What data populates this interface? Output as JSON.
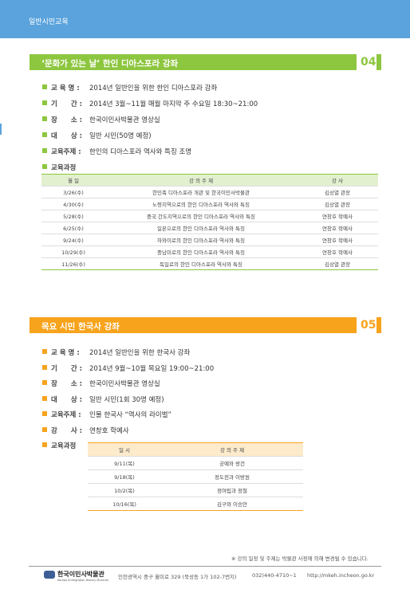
{
  "header": {
    "title": "일반시민교육"
  },
  "sections": [
    {
      "number": "04",
      "title": "‘문화가 있는 날’ 한인 디아스포라 강좌",
      "items": [
        {
          "label": "교 육 명 :",
          "value": "2014년 일반인을 위한 한인 디아스포라 강좌"
        },
        {
          "label": "기　　간 :",
          "value": "2014년 3월~11월 매월 마지막 주 수요일 18:30~21:00"
        },
        {
          "label": "장　　소 :",
          "value": "한국이민사박물관 영상실"
        },
        {
          "label": "대　　상 :",
          "value": "일반 시민(50명 예정)"
        },
        {
          "label": "교육주제 :",
          "value": "한인의 디아스포라 역사와 특징 조명"
        },
        {
          "label": "교육과정"
        }
      ],
      "table": {
        "headers": [
          "월 일",
          "강 의 주 제",
          "강 사"
        ],
        "rows": [
          [
            "3/26(수)",
            "한민족 디아스포라 개관 및 한국이민사박물관",
            "김상열 관장"
          ],
          [
            "4/30(수)",
            "노령지역으로의 한인 디아스포라 역사와 특징",
            "김상열 관장"
          ],
          [
            "5/28(수)",
            "중국 간도지역으로의 한인 디아스포라 역사와 특징",
            "연창호 학예사"
          ],
          [
            "6/25(수)",
            "일본으로의 한인 디아스포라 역사와 특징",
            "연창호 학예사"
          ],
          [
            "9/24(수)",
            "하와이로의 한인 디아스포라 역사와 특징",
            "연창호 학예사"
          ],
          [
            "10/29(수)",
            "중남미로의 한인 디아스포라 역사와 특징",
            "연창호 학예사"
          ],
          [
            "11/26(수)",
            "독일로의 한인 디아스포라 역사와 특징",
            "김상열 관장"
          ]
        ]
      }
    },
    {
      "number": "05",
      "title": "목요 시민 한국사 강좌",
      "items": [
        {
          "label": "교 육 명 :",
          "value": "2014년 일반인을 위한 한국사 강좌"
        },
        {
          "label": "기　　간 :",
          "value": "2014년 9월~10월 목요일 19:00~21:00"
        },
        {
          "label": "장　　소 :",
          "value": "한국이민사박물관 영상실"
        },
        {
          "label": "대　　상 :",
          "value": "일반 시민(1회 30명 예정)"
        },
        {
          "label": "교육주제 :",
          "value": "인물 한국사 “역사의 라이벌”"
        },
        {
          "label": "강　　사 :",
          "value": "연창호 학예사"
        },
        {
          "label": "교육과정"
        }
      ],
      "table": {
        "headers": [
          "일 시",
          "강 의 주 제"
        ],
        "rows": [
          [
            "9/11(목)",
            "궁예와 왕건"
          ],
          [
            "9/18(목)",
            "정도전과 이방원"
          ],
          [
            "10/2(목)",
            "정여립과 정철"
          ],
          [
            "10/16(목)",
            "김구와 이승만"
          ]
        ]
      }
    }
  ],
  "note": "※ 강의 일정 및 주제는 박물관 사정에 의해 변경될 수 있습니다.",
  "footer": {
    "logo": "한국이민사박물관",
    "logo_sub": "Korean Immigration History Museum",
    "address": "인천광역시 중구 월미로 329 (북성동 1가 102-7번지)",
    "phone": "032)440-4710~1",
    "url": "http://mkeh.incheon.go.kr"
  }
}
